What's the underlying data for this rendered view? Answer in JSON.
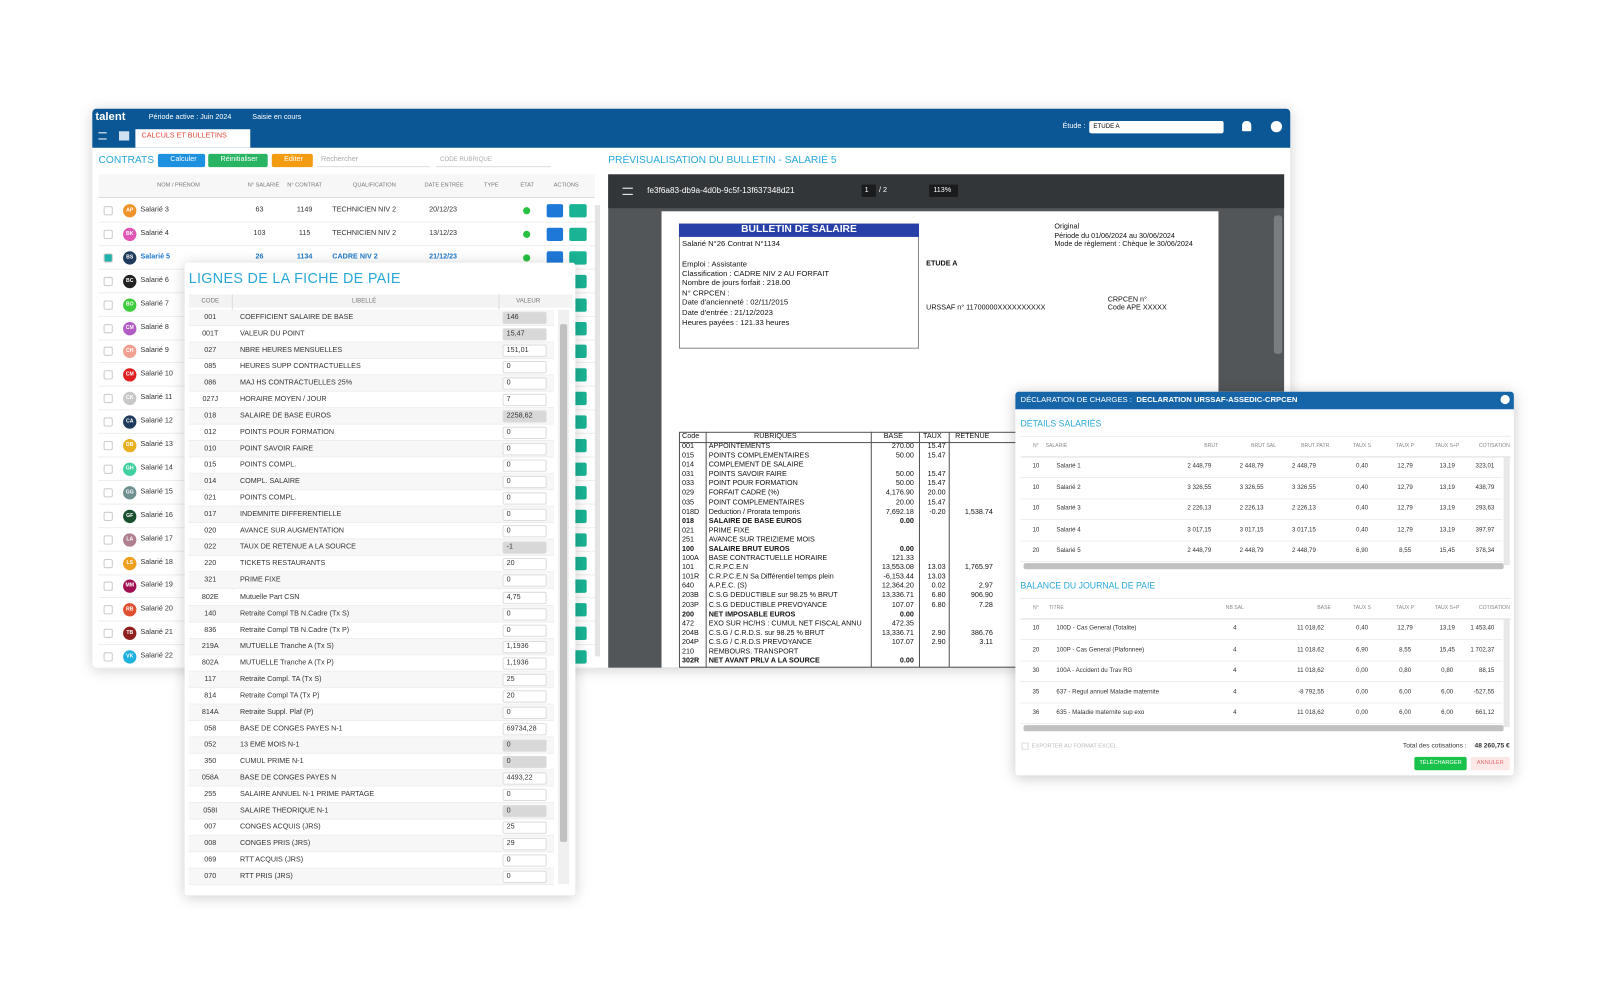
{
  "app": {
    "logo": "talent",
    "period": "Période active : Juin 2024",
    "status": "Saisie en cours",
    "tab": "CALCULS ET BULLETINS",
    "study_label": "Étude :",
    "study_value": "ETUDE A"
  },
  "contracts": {
    "title": "CONTRATS",
    "buttons": [
      "Calculer",
      "Réinitialiser",
      "Editer"
    ],
    "search": "Rechercher",
    "code_search": "CODE RUBRIQUE",
    "columns": [
      "NOM / PRÉNOM",
      "N° SALARIÉ",
      "N° CONTRAT",
      "QUALIFICATION",
      "DATE ENTRÉE",
      "TYPE",
      "ÉTAT",
      "ACTIONS"
    ],
    "rows": [
      {
        "initials": "AP",
        "color": "#f0932b",
        "name": "Salarié 3",
        "number": "63",
        "contract": "1149",
        "qualification": "TECHNICIEN NIV 2",
        "date": "20/12/23"
      },
      {
        "initials": "BK",
        "color": "#e056b4",
        "name": "Salarié 4",
        "number": "103",
        "contract": "115",
        "qualification": "TECHNICIEN NIV 2",
        "date": "13/12/23"
      },
      {
        "initials": "BS",
        "color": "#1f3b5c",
        "name": "Salarié 5",
        "number": "26",
        "contract": "1134",
        "qualification": "CADRE NIV 2",
        "date": "21/12/23",
        "selected": true
      },
      {
        "initials": "BC",
        "color": "#222",
        "name": "Salarié 6"
      },
      {
        "initials": "BO",
        "color": "#3ccc3c",
        "name": "Salarié 7"
      },
      {
        "initials": "CM",
        "color": "#b05cc4",
        "name": "Salarié 8"
      },
      {
        "initials": "CH",
        "color": "#f0a090",
        "name": "Salarié 9"
      },
      {
        "initials": "CM",
        "color": "#e02020",
        "name": "Salarié 10"
      },
      {
        "initials": "CK",
        "color": "#c8c8c8",
        "name": "Salarié 11"
      },
      {
        "initials": "CA",
        "color": "#1f3b5c",
        "name": "Salarié 12"
      },
      {
        "initials": "DB",
        "color": "#e8b020",
        "name": "Salarié 13"
      },
      {
        "initials": "GH",
        "color": "#40d0a0",
        "name": "Salarié 14"
      },
      {
        "initials": "GG",
        "color": "#709090",
        "name": "Salarié 15"
      },
      {
        "initials": "GF",
        "color": "#1a5030",
        "name": "Salarié 16"
      },
      {
        "initials": "LA",
        "color": "#b08090",
        "name": "Salarié 17"
      },
      {
        "initials": "LS",
        "color": "#f0a020",
        "name": "Salarié 18"
      },
      {
        "initials": "MM",
        "color": "#a01050",
        "name": "Salarié 19"
      },
      {
        "initials": "RB",
        "color": "#e05030",
        "name": "Salarié 20"
      },
      {
        "initials": "TB",
        "color": "#902020",
        "name": "Salarié 21"
      },
      {
        "initials": "VK",
        "color": "#20b0e0",
        "name": "Salarié 22"
      }
    ]
  },
  "payslip_lines": {
    "title": "LIGNES DE LA FICHE DE PAIE",
    "columns": [
      "CODE",
      "LIBELLÉ",
      "VALEUR"
    ],
    "rows": [
      [
        "001",
        "COEFFICIENT SALAIRE DE BASE",
        "146",
        true
      ],
      [
        "001T",
        "VALEUR DU POINT",
        "15,47",
        true
      ],
      [
        "027",
        "NBRE HEURES MENSUELLES",
        "151,01"
      ],
      [
        "085",
        "HEURES SUPP CONTRACTUELLES",
        "0"
      ],
      [
        "086",
        "MAJ HS CONTRACTUELLES 25%",
        "0"
      ],
      [
        "027J",
        "HORAIRE MOYEN / JOUR",
        "7"
      ],
      [
        "018",
        "SALAIRE DE BASE EUROS",
        "2258,62",
        true
      ],
      [
        "012",
        "POINTS POUR FORMATION",
        "0"
      ],
      [
        "010",
        "POINT SAVOIR FAIRE",
        "0"
      ],
      [
        "015",
        "POINTS COMPL.",
        "0"
      ],
      [
        "014",
        "COMPL. SALAIRE",
        "0"
      ],
      [
        "021",
        "POINTS COMPL.",
        "0"
      ],
      [
        "017",
        "INDEMNITE DIFFERENTIELLE",
        "0"
      ],
      [
        "020",
        "AVANCE SUR AUGMENTATION",
        "0"
      ],
      [
        "022",
        "TAUX DE RETENUE A LA SOURCE",
        "-1",
        true
      ],
      [
        "220",
        "TICKETS RESTAURANTS",
        "20"
      ],
      [
        "321",
        "PRIME FIXE",
        "0"
      ],
      [
        "802E",
        "Mutuelle Part CSN",
        "4,75"
      ],
      [
        "140",
        "Retraite Compl TB N.Cadre (Tx S)",
        "0"
      ],
      [
        "836",
        "Retraite Compl TB N.Cadre (Tx P)",
        "0"
      ],
      [
        "219A",
        "MUTUELLE Tranche A (Tx S)",
        "1,1936"
      ],
      [
        "802A",
        "MUTUELLE Tranche A (Tx P)",
        "1,1936"
      ],
      [
        "117",
        "Retraite Compl. TA (Tx S)",
        "25"
      ],
      [
        "814",
        "Retraite Compl TA (Tx P)",
        "20"
      ],
      [
        "814A",
        "Retraite Suppl. Plaf (P)",
        "0"
      ],
      [
        "058",
        "BASE DE CONGES PAYES N-1",
        "69734,28"
      ],
      [
        "052",
        "13 EME MOIS N-1",
        "0",
        true
      ],
      [
        "350",
        "CUMUL PRIME N-1",
        "0",
        true
      ],
      [
        "058A",
        "BASE DE CONGES PAYES N",
        "4493,22"
      ],
      [
        "255",
        "SALAIRE ANNUEL N-1 PRIME PARTAGE",
        "0"
      ],
      [
        "058I",
        "SALAIRE THEORIQUE N-1",
        "0",
        true
      ],
      [
        "007",
        "CONGES ACQUIS (JRS)",
        "25"
      ],
      [
        "008",
        "CONGES PRIS (JRS)",
        "29"
      ],
      [
        "069",
        "RTT ACQUIS (JRS)",
        "0"
      ],
      [
        "070",
        "RTT PRIS (JRS)",
        "0"
      ]
    ]
  },
  "preview": {
    "title": "PRÉVISUALISATION DU BULLETIN - SALARIÉ 5",
    "file": "fe3f6a83-db9a-4d0b-9c5f-13f637348d21",
    "page": "1",
    "pages": "/ 2",
    "zoom": "113%",
    "heading": "BULLETIN DE SALAIRE",
    "left_lines": [
      "Salarié N°26 Contrat N°1134",
      "Emploi : Assistante",
      "Classification : CADRE NIV 2 AU FORFAIT",
      "Nombre de jours forfait : 218.00",
      "N° CRPCEN :",
      "Date d'ancienneté : 02/11/2015",
      "Date d'entrée : 21/12/2023",
      "Heures payées : 121.33 heures"
    ],
    "right_lines": [
      "Original",
      "Période du 01/06/2024 au 30/06/2024",
      "Mode de règlement : Chèque le 30/06/2024"
    ],
    "company": "ETUDE A",
    "urssaf": "URSSAF  n° 11700000XXXXXXXXXX",
    "crpcen": "CRPCEN n°",
    "ape": "Code APE XXXXX",
    "columns": [
      "Code",
      "RUBRIQUES",
      "BASE",
      "TAUX",
      "RETENUE"
    ],
    "rows": [
      {
        "code": "001",
        "label": "APPOINTEMENTS",
        "base": "270.00",
        "rate": "15.47"
      },
      {
        "code": "015",
        "label": "POINTS COMPLEMENTAIRES",
        "base": "50.00",
        "rate": "15.47"
      },
      {
        "code": "014",
        "label": "COMPLEMENT DE SALAIRE"
      },
      {
        "code": "031",
        "label": "POINTS SAVOIR FAIRE",
        "base": "50.00",
        "rate": "15.47"
      },
      {
        "code": "033",
        "label": "POINT POUR FORMATION",
        "base": "50.00",
        "rate": "15.47"
      },
      {
        "code": "029",
        "label": "FORFAIT CADRE (%)",
        "base": "4,176.90",
        "rate": "20.00"
      },
      {
        "code": "035",
        "label": "POINT COMPLEMENTAIRES",
        "base": "20.00",
        "rate": "15.47"
      },
      {
        "code": "018D",
        "label": "Deduction / Prorata temporis",
        "base": "7,692.18",
        "rate": "-0.20",
        "ret": "1,538.74"
      },
      {
        "code": "018",
        "label": "SALAIRE DE BASE EUROS",
        "base": "0.00",
        "bold": true
      },
      {
        "code": "021",
        "label": "PRIME FIXE"
      },
      {
        "code": "251",
        "label": "AVANCE SUR TREIZIEME MOIS"
      },
      {
        "code": "100",
        "label": "SALAIRE BRUT EUROS",
        "base": "0.00",
        "bold": true
      },
      {
        "code": "100A",
        "label": "BASE CONTRACTUELLE HORAIRE",
        "base": "121.33"
      },
      {
        "code": "101",
        "label": "C.R.P.C.E.N",
        "base": "13,553.08",
        "rate": "13.03",
        "ret": "1,765.97"
      },
      {
        "code": "101R",
        "label": "C.R.P.C.E.N Sa Différentiel temps plein",
        "base": "-6,153.44",
        "rate": "13.03"
      },
      {
        "code": "640",
        "label": "A.P.E.C. (S)",
        "base": "12,364.20",
        "rate": "0.02",
        "ret": "2.97"
      },
      {
        "code": "203B",
        "label": "C.S.G DEDUCTIBLE sur 98.25 % BRUT",
        "base": "13,336.71",
        "rate": "6.80",
        "ret": "906.90"
      },
      {
        "code": "203P",
        "label": "C.S.G DEDUCTIBLE PREVOYANCE",
        "base": "107.07",
        "rate": "6.80",
        "ret": "7.28"
      },
      {
        "code": "200",
        "label": "NET IMPOSABLE EUROS",
        "base": "0.00",
        "bold": true
      },
      {
        "code": "472",
        "label": "EXO SUR HC/HS : CUMUL NET FISCAL ANNU",
        "base": "472.35"
      },
      {
        "code": "204B",
        "label": "C.S.G / C.R.D.S. sur 98.25 % BRUT",
        "base": "13,336.71",
        "rate": "2.90",
        "ret": "386.76"
      },
      {
        "code": "204P",
        "label": "C.S.G / C.R.D.S PREVOYANCE",
        "base": "107.07",
        "rate": "2.90",
        "ret": "3.11"
      },
      {
        "code": "210",
        "label": "REMBOURS.  TRANSPORT"
      },
      {
        "code": "302R",
        "label": "NET AVANT PRLV A LA SOURCE",
        "base": "0.00",
        "bold": true
      }
    ]
  },
  "declaration": {
    "title_prefix": "DÉCLARATION DE CHARGES : ",
    "title": "DECLARATION URSSAF-ASSEDIC-CRPCEN",
    "employees": {
      "title": "DÉTAILS SALARIÉS",
      "columns": [
        "N°",
        "SALARIÉ",
        "BRUT",
        "BRUT SAL",
        "BRUT PATR.",
        "TAUX S",
        "TAUX P",
        "TAUX S+P",
        "COTISATION"
      ],
      "rows": [
        [
          "10",
          "Salarié 1",
          "2 448,79",
          "2 448,79",
          "2 448,79",
          "0,40",
          "12,79",
          "13,19",
          "323,01"
        ],
        [
          "10",
          "Salarié 2",
          "3 326,55",
          "3 326,55",
          "3 326,55",
          "0,40",
          "12,79",
          "13,19",
          "438,79"
        ],
        [
          "10",
          "Salarié 3",
          "2 226,13",
          "2 226,13",
          "2 226,13",
          "0,40",
          "12,79",
          "13,19",
          "293,63"
        ],
        [
          "10",
          "Salarié 4",
          "3 017,15",
          "3 017,15",
          "3 017,15",
          "0,40",
          "12,79",
          "13,19",
          "397,97"
        ],
        [
          "20",
          "Salarié 5",
          "2 448,79",
          "2 448,79",
          "2 448,79",
          "6,90",
          "8,55",
          "15,45",
          "378,34"
        ]
      ]
    },
    "balance": {
      "title": "BALANCE DU JOURNAL DE PAIE",
      "columns": [
        "N°",
        "TITRE",
        "NB SAL",
        "BASE",
        "TAUX S",
        "TAUX P",
        "TAUX S+P",
        "COTISATION"
      ],
      "rows": [
        [
          "10",
          "100D - Cas General (Totalite)",
          "4",
          "11 018,62",
          "0,40",
          "12,79",
          "13,19",
          "1 453,40"
        ],
        [
          "20",
          "100P - Cas General (Plafonnee)",
          "4",
          "11 018,62",
          "6,90",
          "8,55",
          "15,45",
          "1 702,37"
        ],
        [
          "30",
          "100A - Accident du Trav RG",
          "4",
          "11 018,62",
          "0,00",
          "0,80",
          "0,80",
          "88,15"
        ],
        [
          "35",
          "637 - Regul annuel Maladie maternite",
          "4",
          "-8 792,55",
          "0,00",
          "6,00",
          "6,00",
          "-527,55"
        ],
        [
          "36",
          "635 - Maladie maternite sup exo",
          "4",
          "11 018,62",
          "0,00",
          "6,00",
          "6,00",
          "661,12"
        ]
      ]
    },
    "export": "EXPORTER AU FORMAT EXCEL",
    "total_label": "Total des cotisations : ",
    "total": "48 260,75 €",
    "buttons": [
      "TÉLÉCHARGER",
      "ANNULER"
    ]
  }
}
